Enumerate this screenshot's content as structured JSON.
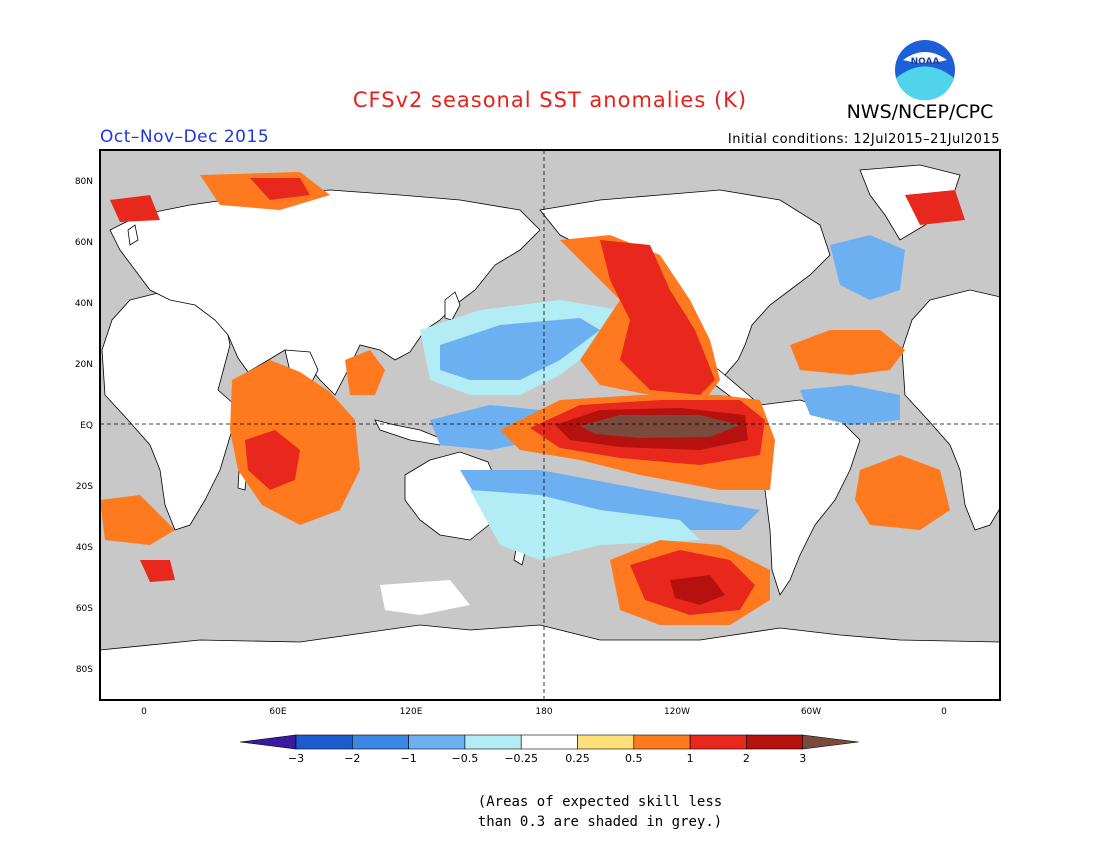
{
  "header": {
    "title": "CFSv2 seasonal SST anomalies (K)",
    "agency": "NWS/NCEP/CPC",
    "logo_text": "NOAA",
    "season": "Oct–Nov–Dec 2015",
    "initial_conditions": "Initial conditions: 12Jul2015–21Jul2015"
  },
  "axes": {
    "lat_labels": [
      "80N",
      "60N",
      "40N",
      "20N",
      "EQ",
      "20S",
      "40S",
      "60S",
      "80S"
    ],
    "lon_labels": [
      "0",
      "60E",
      "120E",
      "180",
      "120W",
      "60W",
      "0"
    ]
  },
  "colorbar": {
    "labels": [
      "-3",
      "-2",
      "-1",
      "-0.5",
      "-0.25",
      "0.25",
      "0.5",
      "1",
      "2",
      "3"
    ],
    "colors": [
      "#3a1a9e",
      "#1e5bd0",
      "#3c86e6",
      "#6db0f2",
      "#b2ecf4",
      "#ffffff",
      "#fde07a",
      "#ff7a1e",
      "#e8281c",
      "#b5110e",
      "#7a4a3c"
    ]
  },
  "note": {
    "line1": "(Areas of expected skill less",
    "line2": "than 0.3 are shaded in grey.)"
  },
  "colors": {
    "land": "#ffffff",
    "low_skill_grey": "#c8c8c8",
    "title_red": "#e8201c",
    "season_blue": "#1c36e0"
  },
  "map": {
    "projection": "cylindrical equidistant, centered on 180",
    "features": [
      {
        "name": "El Nino tongue",
        "region": "eastern equatorial Pacific",
        "anomaly_range": ">3"
      },
      {
        "name": "Northeast Pacific warm anomaly",
        "region": "Gulf of Alaska to Baja",
        "anomaly_range": "1 to 3"
      },
      {
        "name": "Indian Ocean warming",
        "region": "central Indian Ocean",
        "anomaly_range": "0.5 to 2"
      },
      {
        "name": "Southeast Pacific warm patch",
        "region": "near 50S 130W",
        "anomaly_range": "1 to 3"
      },
      {
        "name": "North Pacific cool",
        "region": "subtropical central North Pacific",
        "anomaly_range": "-0.25 to -1"
      },
      {
        "name": "South Pacific cool band",
        "region": "subtropical South Pacific",
        "anomaly_range": "-0.25 to -1"
      }
    ]
  }
}
